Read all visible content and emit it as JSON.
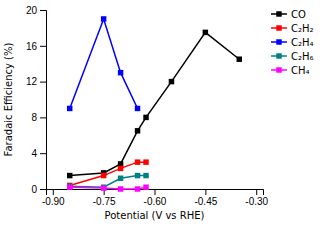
{
  "chart_data": {
    "type": "line",
    "xlabel": "Potential (V vs RHE)",
    "ylabel": "Faradaic Efficiency (%)",
    "xlim": [
      -0.92,
      -0.28
    ],
    "ylim": [
      0,
      20
    ],
    "xticks": [
      {
        "value": -0.9,
        "label": "-0.90"
      },
      -0.75,
      {
        "value": -0.6,
        "label": "-0.60"
      },
      -0.45,
      {
        "value": -0.3,
        "label": "-0.30"
      }
    ],
    "yticks": [
      0,
      4,
      8,
      12,
      16,
      20
    ],
    "grid": false,
    "legend": "upper right",
    "series": [
      {
        "name": "CO",
        "color": "#000000",
        "marker": "square",
        "x": [
          -0.85,
          -0.75,
          -0.7,
          -0.65,
          -0.625,
          -0.55,
          -0.45,
          -0.35
        ],
        "values": [
          1.5,
          1.8,
          2.8,
          6.5,
          8.0,
          12.0,
          17.5,
          14.5
        ]
      },
      {
        "name": "C₂H₂",
        "color": "#ff0000",
        "marker": "square",
        "x": [
          -0.85,
          -0.75,
          -0.7,
          -0.65,
          -0.625
        ],
        "values": [
          0.4,
          1.5,
          2.3,
          3.0,
          3.0
        ]
      },
      {
        "name": "C₂H₄",
        "color": "#0000ff",
        "marker": "square",
        "x": [
          -0.85,
          -0.75,
          -0.7,
          -0.65
        ],
        "values": [
          9.0,
          19.0,
          13.0,
          9.0
        ]
      },
      {
        "name": "C₂H₆",
        "color": "#008080",
        "marker": "square",
        "x": [
          -0.85,
          -0.75,
          -0.7,
          -0.65,
          -0.625
        ],
        "values": [
          0.3,
          0.2,
          1.2,
          1.5,
          1.5
        ]
      },
      {
        "name": "CH₄",
        "color": "#ff00ff",
        "marker": "square",
        "x": [
          -0.85,
          -0.75,
          -0.7,
          -0.65,
          -0.625
        ],
        "values": [
          0.2,
          0.1,
          0.0,
          0.0,
          0.2
        ]
      }
    ]
  }
}
